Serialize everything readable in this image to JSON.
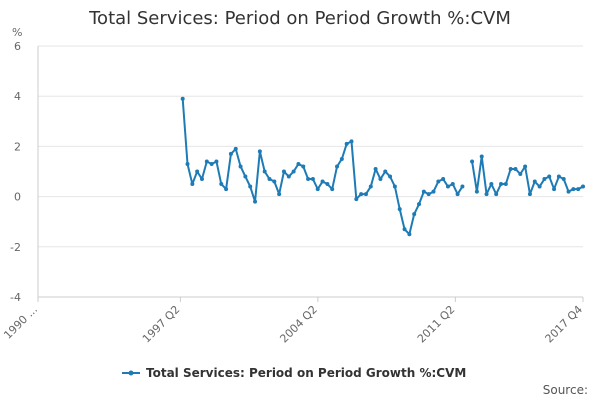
{
  "chart_data": {
    "type": "line",
    "title": "Total Services: Period on Period Growth %:CVM",
    "ylabel": "%",
    "xlabel": "",
    "ylim": [
      -4,
      6
    ],
    "y_ticks": [
      "6",
      "4",
      "2",
      "0",
      "-2",
      "-4"
    ],
    "x_ticks": [
      "1990 ...",
      "1997 Q2",
      "2004 Q2",
      "2011 Q2",
      "2017 Q4"
    ],
    "grid": "horizontal",
    "legend_position": "bottom",
    "series": [
      {
        "name": "Total Services: Period on Period Growth %:CVM",
        "color": "#1f7bb6",
        "values": [
          null,
          null,
          null,
          null,
          null,
          null,
          null,
          null,
          null,
          null,
          null,
          null,
          null,
          null,
          null,
          null,
          null,
          null,
          null,
          null,
          null,
          null,
          null,
          null,
          null,
          null,
          null,
          null,
          null,
          null,
          3.9,
          1.3,
          0.5,
          1.0,
          0.7,
          1.4,
          1.3,
          1.4,
          0.5,
          0.3,
          1.7,
          1.9,
          1.2,
          0.8,
          0.4,
          -0.2,
          1.8,
          1.0,
          0.7,
          0.6,
          0.1,
          1.0,
          0.8,
          1.0,
          1.3,
          1.2,
          0.7,
          0.7,
          0.3,
          0.6,
          0.5,
          0.3,
          1.2,
          1.5,
          2.1,
          2.2,
          -0.1,
          0.1,
          0.1,
          0.4,
          1.1,
          0.7,
          1.0,
          0.8,
          0.4,
          -0.5,
          -1.3,
          -1.5,
          -0.7,
          -0.3,
          0.2,
          0.1,
          0.2,
          0.6,
          0.7,
          0.4,
          0.5,
          0.1,
          0.4,
          null,
          1.4,
          0.2,
          1.6,
          0.1,
          0.5,
          0.1,
          0.5,
          0.5,
          1.1,
          1.1,
          0.9,
          1.2,
          0.1,
          0.6,
          0.4,
          0.7,
          0.8,
          0.3,
          0.8,
          0.7,
          0.2,
          0.3,
          0.3,
          0.4
        ]
      }
    ]
  },
  "legend": {
    "label": "Total Services: Period on Period Growth %:CVM"
  },
  "footer": {
    "source_label": "Source:"
  }
}
